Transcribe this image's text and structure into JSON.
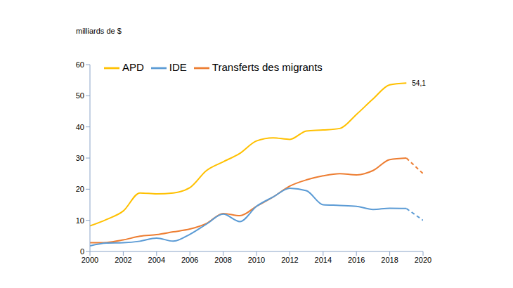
{
  "chart_data": {
    "type": "line",
    "y_label": "milliards de $",
    "x": [
      2000,
      2001,
      2002,
      2003,
      2004,
      2005,
      2006,
      2007,
      2008,
      2009,
      2010,
      2011,
      2012,
      2013,
      2014,
      2015,
      2016,
      2017,
      2018,
      2019,
      2020
    ],
    "series": [
      {
        "name": "APD",
        "color": "#FFC000",
        "line_style": "solid",
        "values": [
          8.2,
          10.3,
          13,
          18.8,
          18.5,
          18.8,
          20.5,
          26,
          28.8,
          31.5,
          35.5,
          36.5,
          36,
          38.7,
          39,
          39.5,
          44,
          49,
          53.5,
          54.1,
          null
        ]
      },
      {
        "name": "Transferts des migrants",
        "color": "#ED7D31",
        "line_style": "solid",
        "values": [
          2.8,
          2.9,
          3.7,
          4.9,
          5.4,
          6.3,
          7.2,
          9,
          12.2,
          11.5,
          14.5,
          17.5,
          21,
          23,
          24.3,
          25,
          24.6,
          26,
          29.5,
          30,
          null
        ],
        "forecast_values": [
          null,
          null,
          null,
          null,
          null,
          null,
          null,
          null,
          null,
          null,
          null,
          null,
          null,
          null,
          null,
          null,
          null,
          null,
          null,
          null,
          25
        ]
      },
      {
        "name": "IDE",
        "color": "#5B9BD5",
        "line_style": "solid",
        "values": [
          1.8,
          2.7,
          2.8,
          3.3,
          4.3,
          3.3,
          5.5,
          8.8,
          12,
          9.6,
          14.5,
          17.5,
          20.3,
          19.5,
          15,
          14.8,
          14.5,
          13.5,
          13.9,
          13.8,
          null
        ],
        "forecast_values": [
          null,
          null,
          null,
          null,
          null,
          null,
          null,
          null,
          null,
          null,
          null,
          null,
          null,
          null,
          null,
          null,
          null,
          null,
          null,
          null,
          10
        ]
      }
    ],
    "annotations": [
      {
        "text": "54,1",
        "x": 2019,
        "y": 54.1
      }
    ],
    "xlim": [
      2000,
      2020
    ],
    "xticks": [
      2000,
      2002,
      2004,
      2006,
      2008,
      2010,
      2012,
      2014,
      2016,
      2018,
      2020
    ],
    "ylim": [
      0,
      60
    ],
    "yticks": [
      0,
      10,
      20,
      30,
      40,
      50,
      60
    ],
    "grid": false,
    "legend": "upper left"
  }
}
